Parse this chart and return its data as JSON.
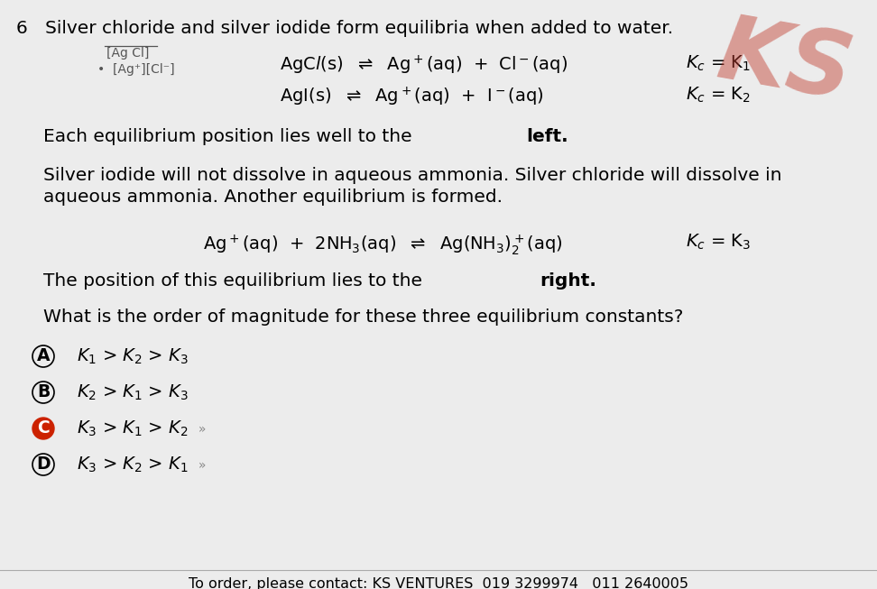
{
  "background_color": "#ececec",
  "question_number": "6",
  "title_text": "Silver chloride and silver iodide form equilibria when added to water.",
  "para1_pre": "Each equilibrium position lies well to the ",
  "para1_bold": "left",
  "para2a": "Silver iodide will not dissolve in aqueous ammonia. Silver chloride will dissolve in",
  "para2b": "aqueous ammonia. Another equilibrium is formed.",
  "para3_pre": "The position of this equilibrium lies to the ",
  "para3_bold": "right",
  "question": "What is the order of magnitude for these three equilibrium constants?",
  "footer": "To order, please contact: KS VENTURES  019 3299974   011 2640005",
  "watermark": "KS",
  "font_size_main": 14.5,
  "font_size_eq": 14.0,
  "font_size_option": 14.0,
  "font_size_footer": 11.5
}
